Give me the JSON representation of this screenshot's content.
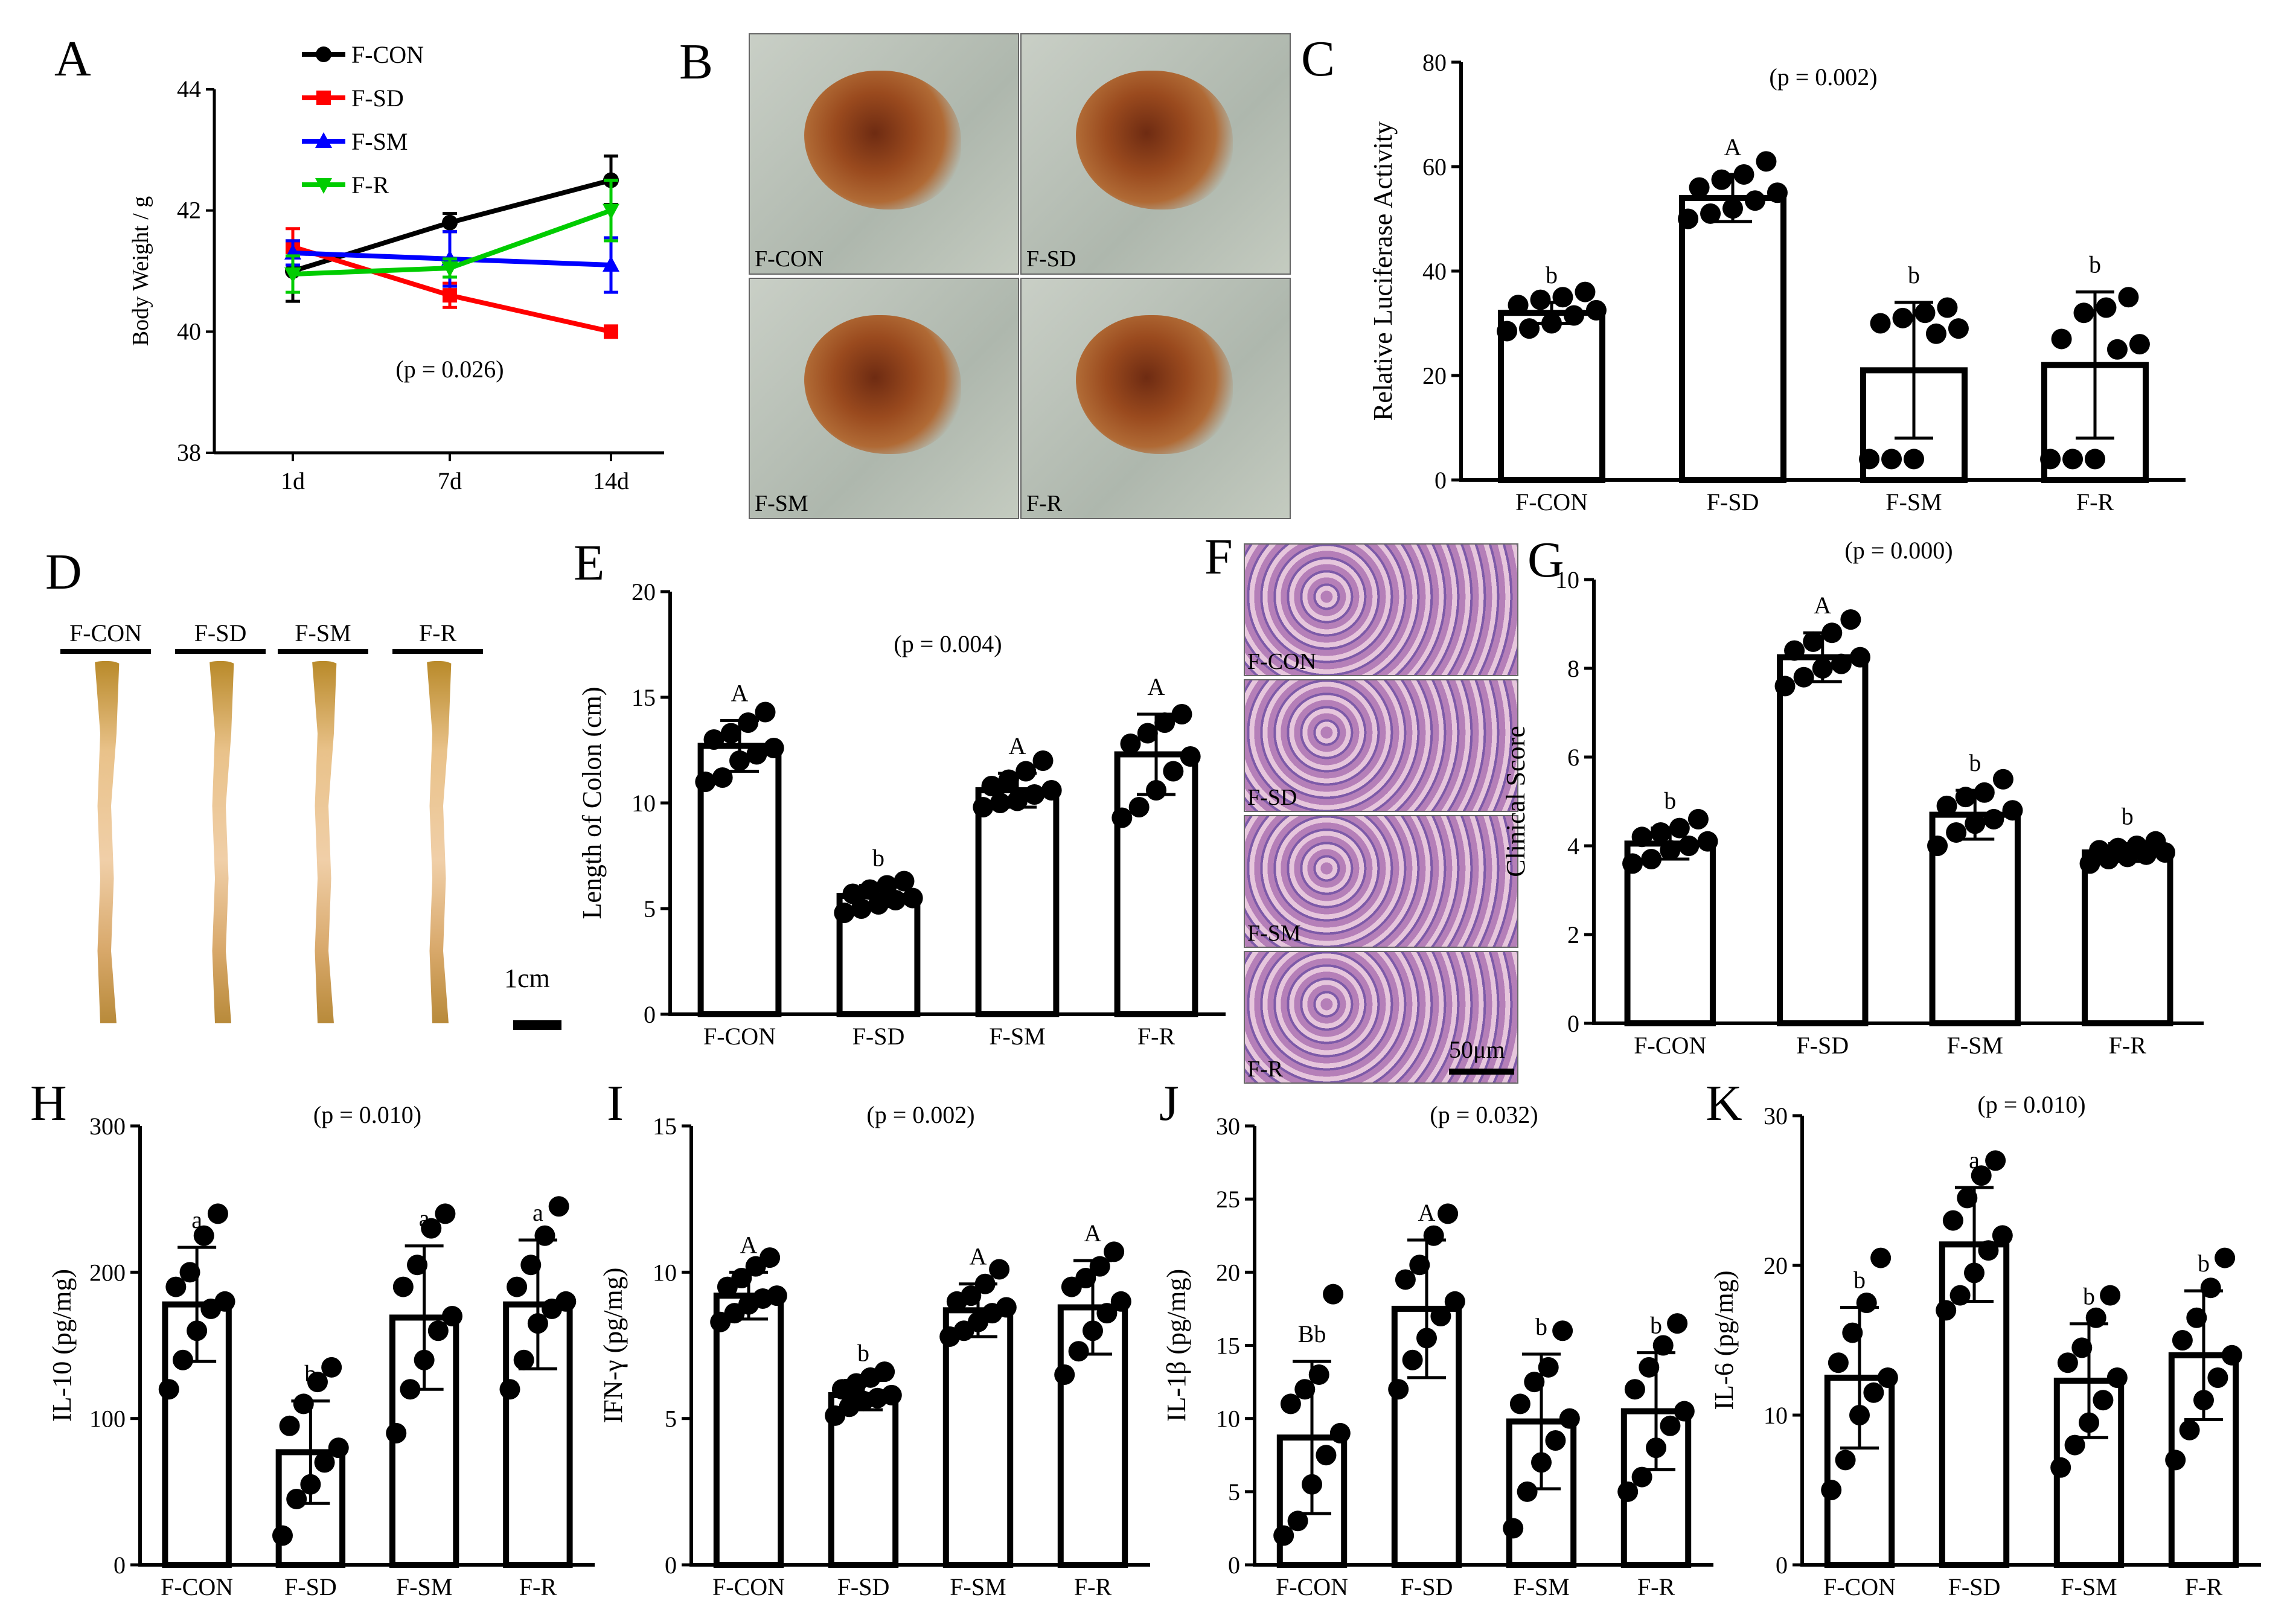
{
  "figure_type": "Multi-panel scientific figure",
  "chart_data": [
    {
      "panel": "A",
      "type": "line",
      "ylabel": "Body Weight / g",
      "x_categories": [
        "1d",
        "7d",
        "14d"
      ],
      "ylim": [
        38,
        44
      ],
      "yticks": [
        38,
        40,
        42,
        44
      ],
      "p_text": "(p = 0.026)",
      "series": [
        {
          "name": "F-CON",
          "color": "#000000",
          "marker": "circle",
          "values": [
            41.0,
            41.8,
            42.5
          ],
          "err": [
            0.5,
            0.15,
            0.4
          ]
        },
        {
          "name": "F-SD",
          "color": "#ff0000",
          "marker": "square",
          "values": [
            41.4,
            40.6,
            40.0
          ],
          "err": [
            0.3,
            0.2,
            0.05
          ]
        },
        {
          "name": "F-SM",
          "color": "#0000ff",
          "marker": "triangle",
          "values": [
            41.3,
            41.2,
            41.1
          ],
          "err": [
            0.2,
            0.45,
            0.45
          ]
        },
        {
          "name": "F-R",
          "color": "#00cc00",
          "marker": "down-triangle",
          "values": [
            40.95,
            41.05,
            42.0
          ],
          "err": [
            0.3,
            0.15,
            0.5
          ]
        }
      ]
    },
    {
      "panel": "C",
      "type": "bar",
      "ylabel": "Relative Luciferase Activity",
      "categories": [
        "F-CON",
        "F-SD",
        "F-SM",
        "F-R"
      ],
      "values": [
        32,
        54,
        21,
        22
      ],
      "errors": [
        2,
        4.5,
        13,
        14
      ],
      "letters": [
        "b",
        "A",
        "b",
        "b"
      ],
      "ylim": [
        0,
        80
      ],
      "yticks": [
        0,
        20,
        40,
        60,
        80
      ],
      "p_text": "(p = 0.002)",
      "points": [
        [
          28.5,
          29,
          30,
          31.5,
          32.5,
          33.5,
          34.5,
          35,
          36
        ],
        [
          50,
          51,
          52,
          53.5,
          55,
          56,
          57.5,
          58.5,
          61
        ],
        [
          4,
          4,
          4,
          28,
          29,
          30,
          31,
          32,
          33
        ],
        [
          4,
          4,
          4,
          25,
          26,
          27,
          32,
          33,
          35
        ]
      ]
    },
    {
      "panel": "E",
      "type": "bar",
      "ylabel": "Length of Colon (cm)",
      "categories": [
        "F-CON",
        "F-SD",
        "F-SM",
        "F-R"
      ],
      "values": [
        12.7,
        5.6,
        10.6,
        12.3
      ],
      "errors": [
        1.2,
        0.5,
        0.8,
        1.9
      ],
      "letters": [
        "A",
        "b",
        "A",
        "A"
      ],
      "ylim": [
        0,
        20
      ],
      "yticks": [
        0,
        5,
        10,
        15,
        20
      ],
      "p_text": "(p = 0.004)",
      "points": [
        [
          11,
          11.2,
          12,
          12.3,
          12.6,
          13,
          13.3,
          13.8,
          14.3
        ],
        [
          4.8,
          5,
          5.2,
          5.4,
          5.5,
          5.7,
          5.9,
          6.1,
          6.3
        ],
        [
          9.8,
          10,
          10.1,
          10.4,
          10.6,
          10.8,
          11.1,
          11.5,
          12
        ],
        [
          9.3,
          9.8,
          10.6,
          11.5,
          12.2,
          12.8,
          13.3,
          13.8,
          14.2
        ]
      ]
    },
    {
      "panel": "G",
      "type": "bar",
      "ylabel": "Clinical Score",
      "categories": [
        "F-CON",
        "F-SD",
        "F-SM",
        "F-R"
      ],
      "values": [
        4.05,
        8.25,
        4.7,
        3.85
      ],
      "errors": [
        0.35,
        0.55,
        0.55,
        0.2
      ],
      "letters": [
        "b",
        "A",
        "b",
        "b"
      ],
      "ylim": [
        0,
        10
      ],
      "yticks": [
        0,
        2,
        4,
        6,
        8,
        10
      ],
      "p_text": "(p = 0.000)",
      "points": [
        [
          3.6,
          3.7,
          3.9,
          4.0,
          4.1,
          4.2,
          4.3,
          4.4,
          4.6
        ],
        [
          7.6,
          7.8,
          8.0,
          8.1,
          8.25,
          8.4,
          8.6,
          8.8,
          9.1
        ],
        [
          4.0,
          4.3,
          4.5,
          4.6,
          4.8,
          4.9,
          5.1,
          5.2,
          5.5
        ],
        [
          3.6,
          3.7,
          3.75,
          3.8,
          3.85,
          3.9,
          3.95,
          4.0,
          4.1
        ]
      ]
    },
    {
      "panel": "H",
      "type": "bar",
      "ylabel": "IL-10 (pg/mg)",
      "categories": [
        "F-CON",
        "F-SD",
        "F-SM",
        "F-R"
      ],
      "values": [
        178,
        77,
        169,
        178
      ],
      "errors": [
        39,
        35,
        49,
        44
      ],
      "letters": [
        "a",
        "b",
        "a",
        "a"
      ],
      "ylim": [
        0,
        300
      ],
      "yticks": [
        0,
        100,
        200,
        300
      ],
      "p_text": "(p = 0.010)",
      "points": [
        [
          120,
          140,
          160,
          175,
          180,
          190,
          200,
          225,
          240
        ],
        [
          20,
          45,
          55,
          70,
          80,
          95,
          110,
          125,
          135
        ],
        [
          90,
          120,
          140,
          160,
          170,
          190,
          205,
          230,
          240
        ],
        [
          120,
          140,
          165,
          175,
          180,
          190,
          205,
          225,
          245
        ]
      ]
    },
    {
      "panel": "I",
      "type": "bar",
      "ylabel": "IFN-γ (pg/mg)",
      "categories": [
        "F-CON",
        "F-SD",
        "F-SM",
        "F-R"
      ],
      "values": [
        9.2,
        5.8,
        8.7,
        8.8
      ],
      "errors": [
        0.8,
        0.5,
        0.9,
        1.6
      ],
      "letters": [
        "A",
        "b",
        "A",
        "A"
      ],
      "ylim": [
        0,
        15
      ],
      "yticks": [
        0,
        5,
        10,
        15
      ],
      "p_text": "(p = 0.002)",
      "points": [
        [
          8.3,
          8.6,
          8.9,
          9.1,
          9.2,
          9.5,
          9.8,
          10.2,
          10.5
        ],
        [
          5.1,
          5.4,
          5.6,
          5.7,
          5.8,
          6.0,
          6.2,
          6.4,
          6.6
        ],
        [
          7.8,
          8.0,
          8.3,
          8.6,
          8.8,
          9.0,
          9.2,
          9.6,
          10.1
        ],
        [
          6.5,
          7.3,
          8.0,
          8.6,
          9.0,
          9.5,
          9.8,
          10.2,
          10.7
        ]
      ]
    },
    {
      "panel": "J",
      "type": "bar",
      "ylabel": "IL-1β (pg/mg)",
      "categories": [
        "F-CON",
        "F-SD",
        "F-SM",
        "F-R"
      ],
      "values": [
        8.7,
        17.5,
        9.8,
        10.5
      ],
      "errors": [
        5.2,
        4.7,
        4.6,
        4.0
      ],
      "letters": [
        "Bb",
        "A",
        "b",
        "b"
      ],
      "ylim": [
        0,
        30
      ],
      "yticks": [
        0,
        5,
        10,
        15,
        20,
        25,
        30
      ],
      "p_text": "(p = 0.032)",
      "points": [
        [
          2,
          3,
          5.5,
          7.5,
          9,
          11,
          12,
          13,
          18.5
        ],
        [
          12,
          14,
          15.5,
          17,
          18,
          19.5,
          20.5,
          22.5,
          24
        ],
        [
          2.5,
          5,
          7,
          8.5,
          10,
          11,
          12.5,
          13.5,
          16
        ],
        [
          5,
          6,
          8,
          9.5,
          10.5,
          12,
          13.5,
          15,
          16.5
        ]
      ]
    },
    {
      "panel": "K",
      "type": "bar",
      "ylabel": "IL-6 (pg/mg)",
      "categories": [
        "F-CON",
        "F-SD",
        "F-SM",
        "F-R"
      ],
      "values": [
        12.5,
        21.4,
        12.3,
        14.0
      ],
      "errors": [
        4.7,
        3.8,
        3.8,
        4.3
      ],
      "letters": [
        "b",
        "a",
        "b",
        "b"
      ],
      "ylim": [
        0,
        30
      ],
      "yticks": [
        0,
        10,
        20,
        30
      ],
      "p_text": "(p = 0.010)",
      "points": [
        [
          5,
          7,
          10,
          11.5,
          12.5,
          13.5,
          15.5,
          17.5,
          20.5
        ],
        [
          17,
          18,
          19.5,
          21,
          22,
          23,
          24.5,
          26,
          27
        ],
        [
          6.5,
          8,
          9.5,
          11,
          12.5,
          13.5,
          14.5,
          16.5,
          18
        ],
        [
          7,
          9,
          11,
          12.5,
          14,
          15,
          16.5,
          18.5,
          20.5
        ]
      ]
    }
  ],
  "panel_letters": [
    "A",
    "B",
    "C",
    "D",
    "E",
    "F",
    "G",
    "H",
    "I",
    "J",
    "K"
  ],
  "photo_labels": {
    "B": [
      "F-CON",
      "F-SD",
      "F-SM",
      "F-R"
    ],
    "D": [
      "F-CON",
      "F-SD",
      "F-SM",
      "F-R"
    ],
    "F": [
      "F-CON",
      "F-SD",
      "F-SM",
      "F-R"
    ]
  },
  "scale_bars": {
    "D": "1cm",
    "F": "50μm"
  }
}
